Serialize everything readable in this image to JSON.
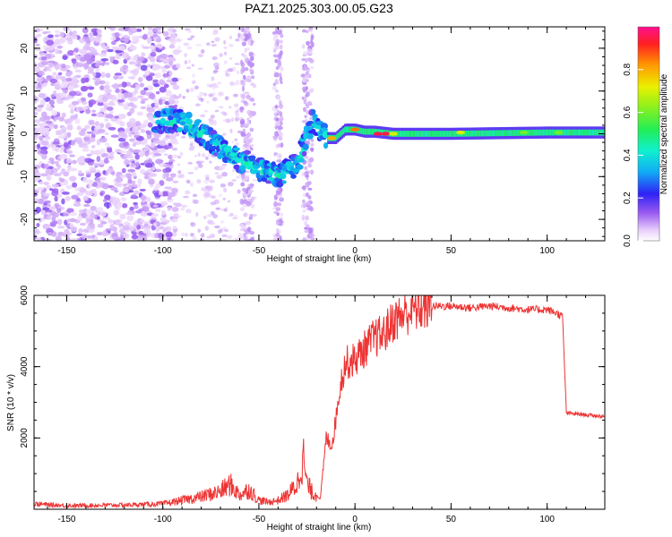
{
  "title": "PAZ1.2025.303.00.05.G23",
  "colors": {
    "snr_line": "#ee3333",
    "axis": "#000000"
  },
  "chart_data": [
    {
      "type": "heatmap",
      "name": "spectrogram",
      "xlabel": "Height of straight line (km)",
      "ylabel": "Frequency (Hz)",
      "xlim": [
        -167,
        130
      ],
      "ylim": [
        -25,
        25
      ],
      "xticks": [
        -150,
        -100,
        -50,
        0,
        50,
        100
      ],
      "yticks": [
        -20,
        -10,
        0,
        10,
        20
      ],
      "colorbar": {
        "label": "Normalized spectral amplitude",
        "range": [
          0,
          1
        ],
        "ticks": [
          "0.0",
          "0.2",
          "0.4",
          "0.6",
          "0.8"
        ],
        "tick_values": [
          0,
          0.2,
          0.4,
          0.6,
          0.8
        ]
      },
      "ridge": {
        "description": "Doppler-shifted carrier track",
        "x": [
          -100,
          -90,
          -80,
          -70,
          -60,
          -50,
          -40,
          -30,
          -22,
          -15,
          -10,
          -5,
          0,
          5,
          10,
          20,
          50,
          100,
          130
        ],
        "y": [
          3,
          3,
          0,
          -3,
          -6,
          -8,
          -10,
          -7,
          3,
          -1,
          -1,
          1,
          1,
          0.5,
          0.5,
          0,
          0,
          0.3,
          0.3
        ]
      }
    },
    {
      "type": "line",
      "name": "snr",
      "xlabel": "Height of straight line (km)",
      "ylabel": "SNR (10 * v/v)",
      "xlim": [
        -167,
        130
      ],
      "ylim": [
        0,
        6000
      ],
      "xticks": [
        -150,
        -100,
        -50,
        0,
        50,
        100
      ],
      "yticks": [
        2000,
        4000,
        6000
      ],
      "series": [
        {
          "name": "SNR",
          "x": [
            -167,
            -150,
            -120,
            -100,
            -90,
            -80,
            -70,
            -65,
            -60,
            -55,
            -50,
            -45,
            -40,
            -35,
            -30,
            -27,
            -25,
            -22,
            -20,
            -18,
            -15,
            -12,
            -10,
            -8,
            -5,
            0,
            5,
            10,
            15,
            20,
            30,
            40,
            50,
            60,
            70,
            80,
            90,
            100,
            105,
            108,
            110,
            120,
            130
          ],
          "y": [
            150,
            100,
            120,
            150,
            250,
            350,
            500,
            700,
            400,
            550,
            250,
            200,
            250,
            400,
            700,
            1500,
            700,
            450,
            400,
            300,
            2000,
            1800,
            2500,
            3400,
            4100,
            4200,
            4500,
            4800,
            4900,
            5300,
            5600,
            5700,
            5700,
            5650,
            5700,
            5650,
            5600,
            5600,
            5500,
            5400,
            2700,
            2650,
            2600
          ]
        }
      ]
    }
  ]
}
